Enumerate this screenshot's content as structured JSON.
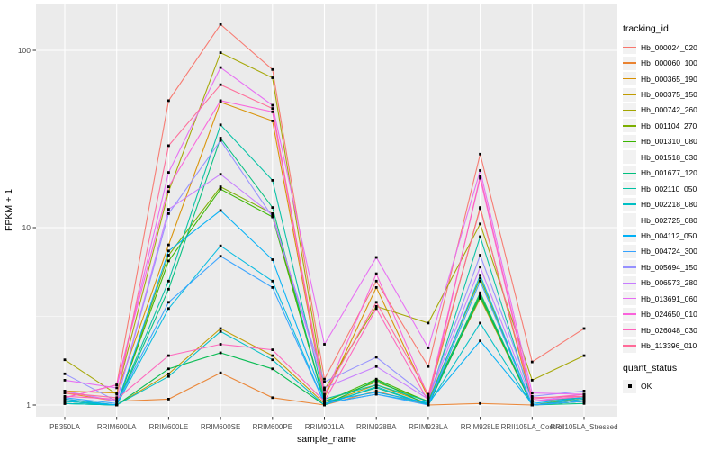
{
  "chart_data": {
    "type": "line",
    "title": "",
    "xlabel": "sample_name",
    "ylabel": "FPKM + 1",
    "y_scale": "log10",
    "y_tick_values": [
      1,
      10,
      100
    ],
    "y_tick_labels": [
      "1",
      "10",
      "100"
    ],
    "y_minor_values": [
      3.1623,
      31.623
    ],
    "ylim_log": [
      0.93,
      160
    ],
    "grid": "on",
    "panel_bg": "#EBEBEB",
    "grid_color": "#FFFFFF",
    "tick_label_color": "#4D4D4D",
    "axis_title_color": "#000000",
    "point_marker": "black-square",
    "categories": [
      "PB350LA",
      "RRIM600LA",
      "RRIM600LE",
      "RRIM600SE",
      "RRIM600PE",
      "RRIM901LA",
      "RRIM928BA",
      "RRIM928LA",
      "RRIM928LE",
      "RRII105LA_Control",
      "RRII105LA_Stressed"
    ],
    "legend": {
      "title": "tracking_id",
      "position": "right"
    },
    "quant_legend": {
      "title": "quant_status",
      "items": [
        {
          "label": "OK",
          "marker": "black-square"
        }
      ]
    },
    "series": [
      {
        "name": "Hb_000024_020",
        "color": "#F8766D",
        "values": [
          1.1,
          1.3,
          52,
          140,
          78,
          1.4,
          5.0,
          1.65,
          26,
          1.75,
          2.7
        ]
      },
      {
        "name": "Hb_000060_100",
        "color": "#EA8331",
        "values": [
          1.17,
          1.05,
          1.08,
          1.52,
          1.1,
          1.0,
          1.2,
          1.0,
          1.02,
          1.0,
          1.05
        ]
      },
      {
        "name": "Hb_000365_190",
        "color": "#D89000",
        "values": [
          1.2,
          1.17,
          8.0,
          51,
          40,
          1.1,
          4.6,
          1.1,
          13,
          1.05,
          1.1
        ]
      },
      {
        "name": "Hb_000375_150",
        "color": "#C09B00",
        "values": [
          1.05,
          1.0,
          1.5,
          2.7,
          1.9,
          1.02,
          1.3,
          1.02,
          4.0,
          1.0,
          1.08
        ]
      },
      {
        "name": "Hb_000742_260",
        "color": "#A3A500",
        "values": [
          1.8,
          1.15,
          16,
          97,
          70,
          1.22,
          3.6,
          2.9,
          10.5,
          1.38,
          1.9
        ]
      },
      {
        "name": "Hb_001104_270",
        "color": "#7CAE00",
        "values": [
          1.08,
          1.0,
          7.0,
          17,
          12.0,
          1.05,
          1.35,
          1.05,
          5.2,
          1.0,
          1.1
        ]
      },
      {
        "name": "Hb_001310_080",
        "color": "#39B600",
        "values": [
          1.05,
          1.0,
          6.5,
          16.5,
          11.5,
          1.04,
          1.4,
          1.04,
          4.2,
          1.0,
          1.05
        ]
      },
      {
        "name": "Hb_001518_030",
        "color": "#00BB4E",
        "values": [
          1.02,
          1.0,
          1.6,
          1.97,
          1.6,
          1.0,
          1.38,
          1.0,
          4.1,
          1.0,
          1.05
        ]
      },
      {
        "name": "Hb_001677_120",
        "color": "#00BF7D",
        "values": [
          1.02,
          1.0,
          4.5,
          32,
          13,
          1.02,
          1.25,
          1.0,
          4.3,
          1.0,
          1.02
        ]
      },
      {
        "name": "Hb_002110_050",
        "color": "#00C1A3",
        "values": [
          1.05,
          1.0,
          5.0,
          38,
          18.5,
          1.08,
          1.3,
          1.05,
          8.9,
          1.05,
          1.1
        ]
      },
      {
        "name": "Hb_002218_080",
        "color": "#00BFC4",
        "values": [
          1.02,
          1.0,
          1.45,
          2.6,
          1.8,
          1.0,
          1.27,
          1.0,
          2.9,
          1.0,
          1.05
        ]
      },
      {
        "name": "Hb_002725_080",
        "color": "#00BAE0",
        "values": [
          1.05,
          1.0,
          3.5,
          7.9,
          5.0,
          1.02,
          1.15,
          1.02,
          5.4,
          1.0,
          1.08
        ]
      },
      {
        "name": "Hb_004112_050",
        "color": "#00B0F6",
        "values": [
          1.08,
          1.0,
          7.4,
          12.5,
          6.6,
          1.05,
          1.18,
          1.03,
          2.3,
          1.02,
          1.1
        ]
      },
      {
        "name": "Hb_004724_300",
        "color": "#35A2FF",
        "values": [
          1.1,
          1.02,
          3.8,
          6.9,
          4.6,
          1.02,
          1.15,
          1.0,
          5.0,
          1.0,
          1.05
        ]
      },
      {
        "name": "Hb_005694_150",
        "color": "#9590FF",
        "values": [
          1.5,
          1.05,
          12,
          31,
          11.5,
          1.35,
          1.86,
          1.1,
          7.0,
          1.12,
          1.2
        ]
      },
      {
        "name": "Hb_006573_280",
        "color": "#C77CFF",
        "values": [
          1.2,
          1.05,
          12.7,
          20,
          11.8,
          1.25,
          1.65,
          1.08,
          6.0,
          1.05,
          1.15
        ]
      },
      {
        "name": "Hb_013691_060",
        "color": "#E76BF3",
        "values": [
          1.38,
          1.25,
          20.5,
          80,
          49,
          2.2,
          6.8,
          2.1,
          21,
          1.17,
          1.15
        ]
      },
      {
        "name": "Hb_024650_010",
        "color": "#FA62DB",
        "values": [
          1.1,
          1.3,
          17,
          52,
          45,
          1.12,
          5.5,
          1.12,
          19,
          1.05,
          1.12
        ]
      },
      {
        "name": "Hb_026048_030",
        "color": "#FF62BC",
        "values": [
          1.12,
          1.08,
          1.9,
          2.2,
          2.05,
          1.05,
          3.5,
          1.05,
          19.5,
          1.08,
          1.15
        ]
      },
      {
        "name": "Hb_113396_010",
        "color": "#FF6A98",
        "values": [
          1.17,
          1.1,
          29,
          64,
          47,
          1.15,
          3.8,
          1.15,
          12.8,
          1.1,
          1.12
        ]
      }
    ]
  }
}
